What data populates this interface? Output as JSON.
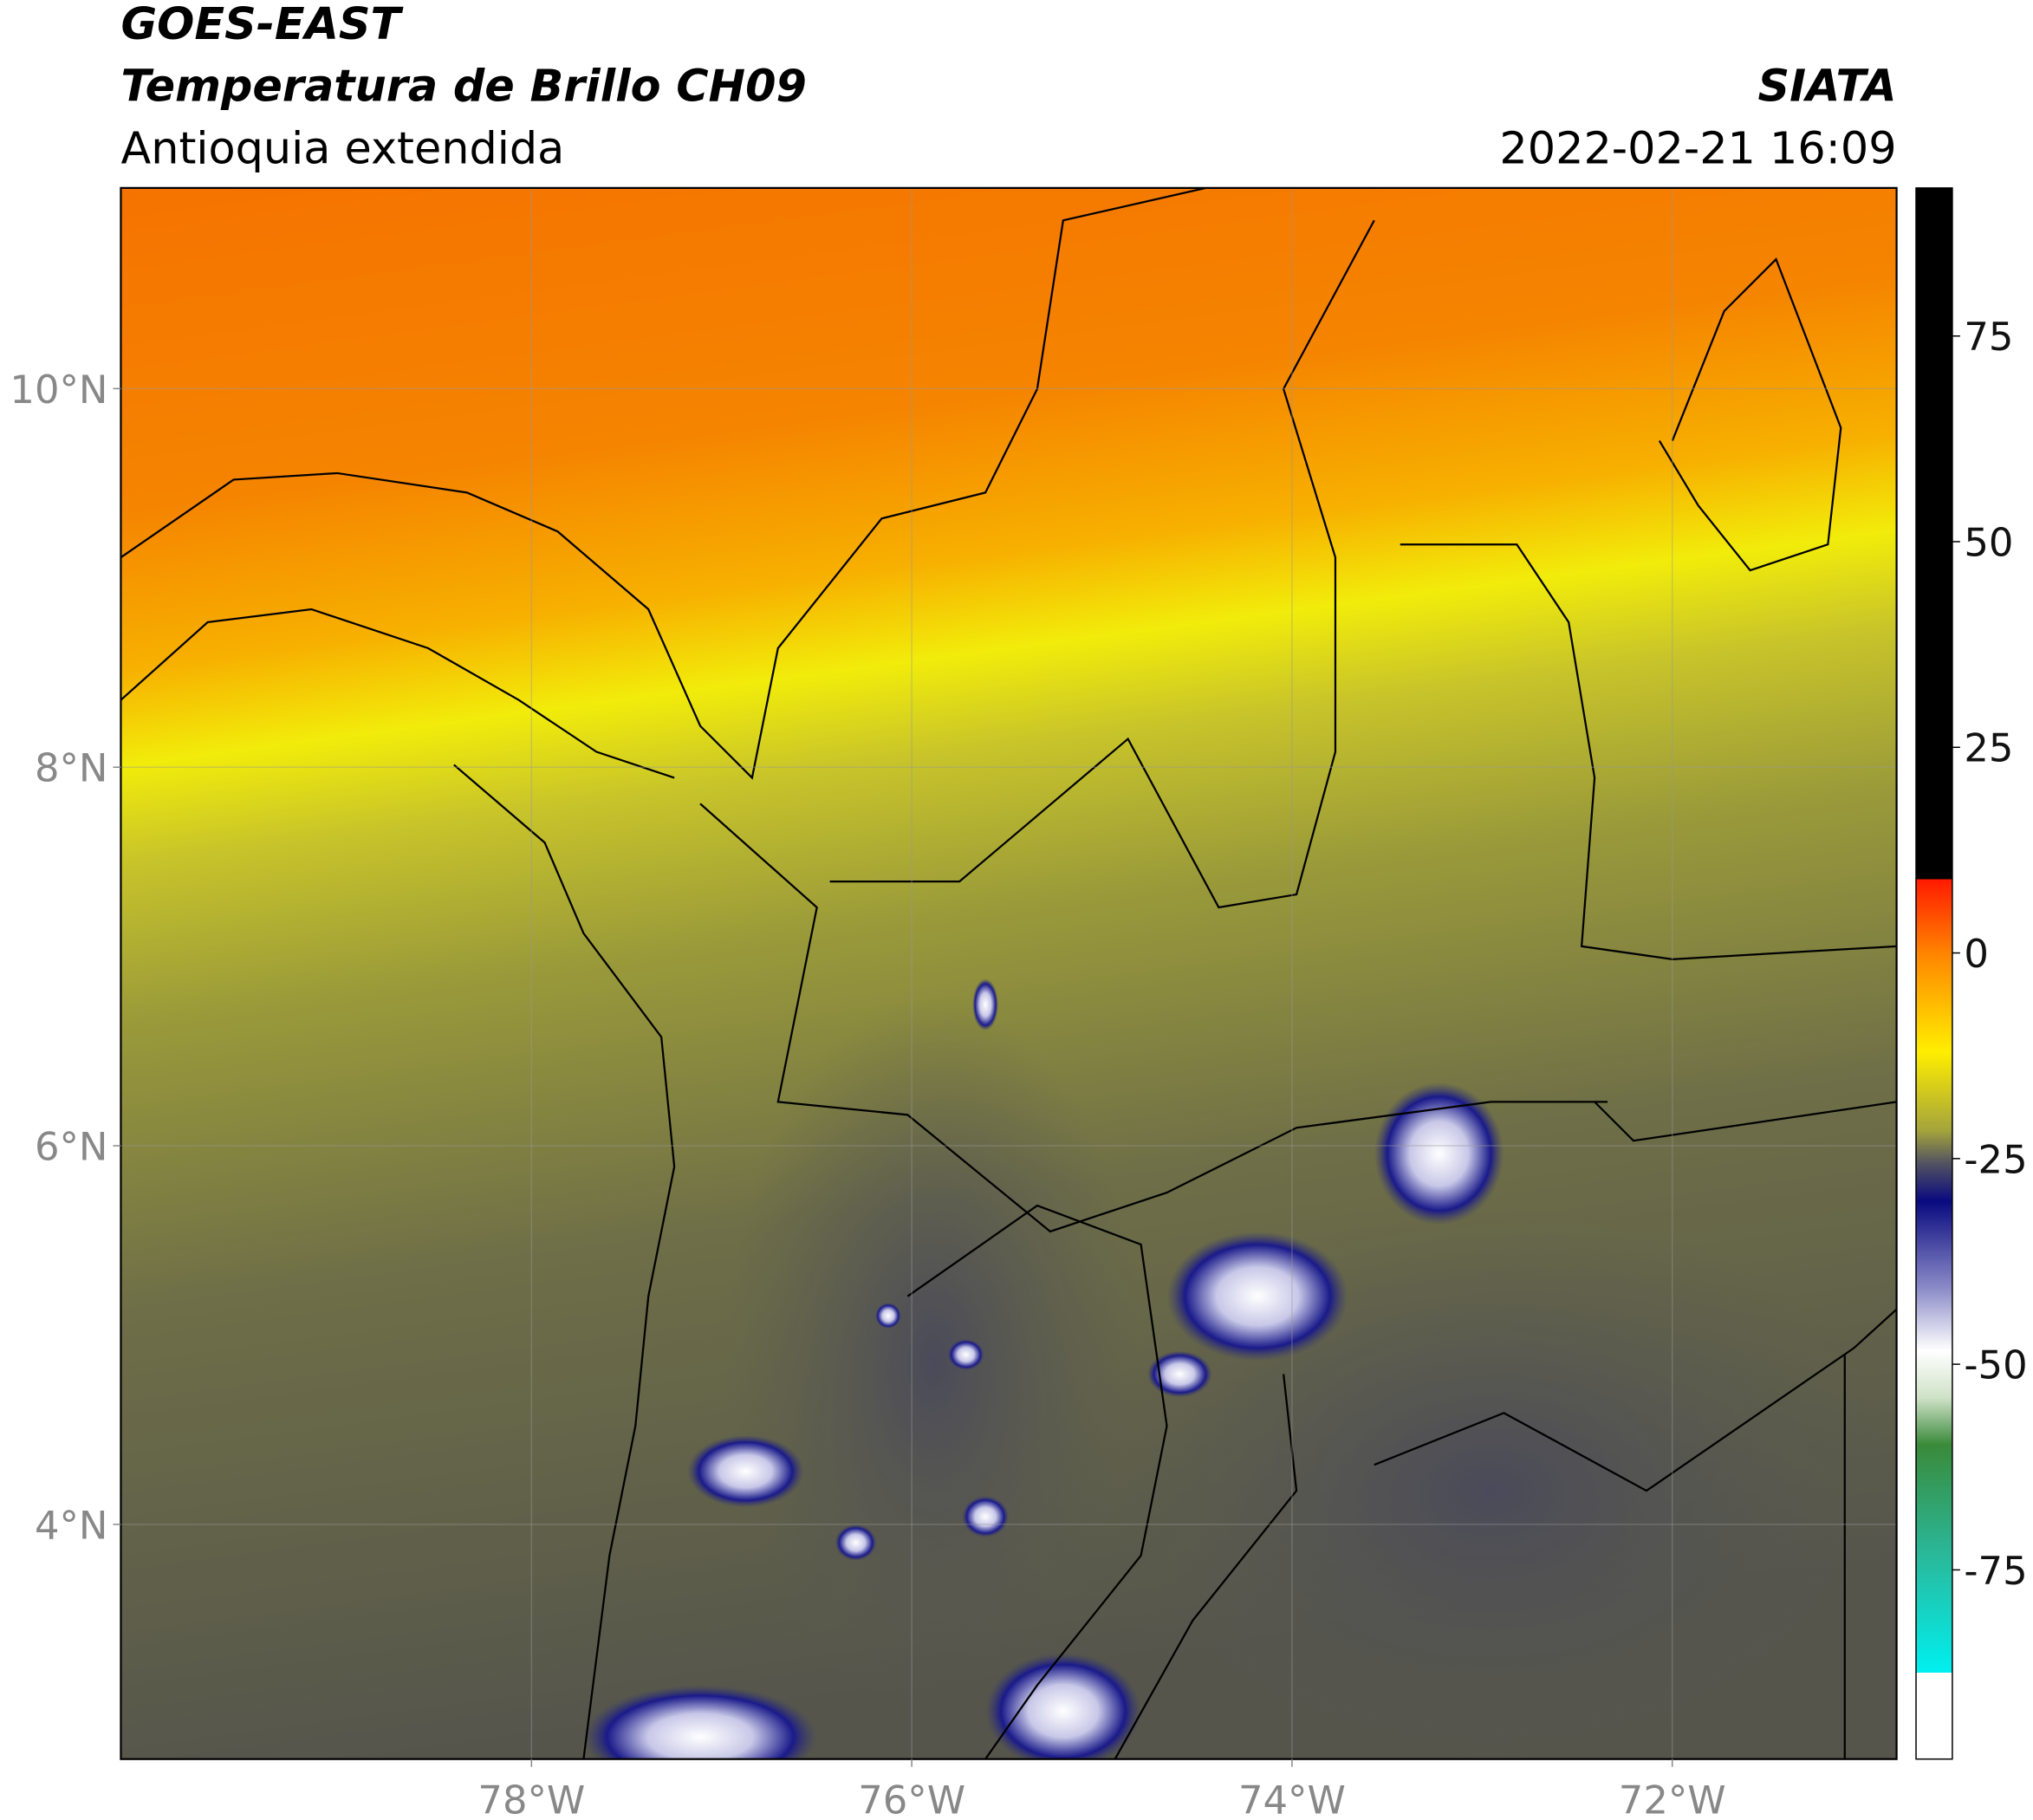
{
  "header": {
    "title": "GOES-EAST",
    "subtitle": "Temperatura de Brillo CH09",
    "region": "Antioquia extendida",
    "source": "SIATA",
    "datetime": "2022-02-21 16:09"
  },
  "map": {
    "latlim": [
      2.76,
      11.06
    ],
    "lonlim": [
      -80.16,
      -70.82
    ],
    "lat_ticks": [
      {
        "value": 10,
        "label": "10°N"
      },
      {
        "value": 8,
        "label": "8°N"
      },
      {
        "value": 6,
        "label": "6°N"
      },
      {
        "value": 4,
        "label": "4°N"
      }
    ],
    "lon_ticks": [
      {
        "value": -78,
        "label": "78°W"
      },
      {
        "value": -76,
        "label": "76°W"
      },
      {
        "value": -74,
        "label": "74°W"
      },
      {
        "value": -72,
        "label": "72°W"
      }
    ]
  },
  "colorbar": {
    "lim": [
      -98,
      93
    ],
    "ticks": [
      75,
      50,
      25,
      0,
      -25,
      -50,
      -75
    ]
  }
}
